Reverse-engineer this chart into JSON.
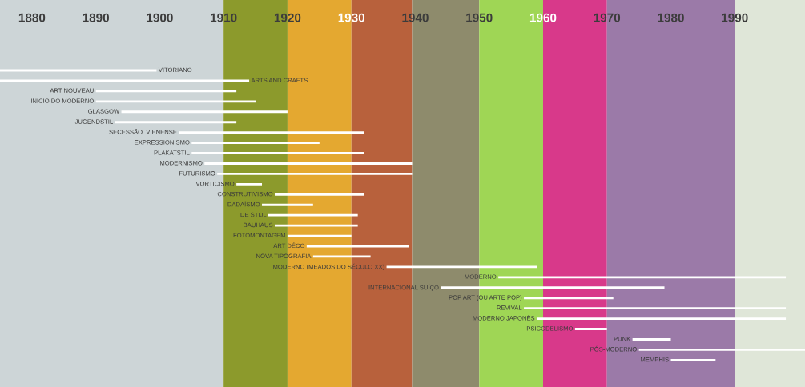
{
  "chart_data": {
    "type": "bar",
    "orientation": "horizontal",
    "categories": [
      "VITORIANO",
      "ARTS AND CRAFTS",
      "ART NOUVEAU",
      "INÍCIO DO MODERNO",
      "GLASGOW",
      "JUGENDSTIL",
      "SECESSÃO  VIENENSE",
      "EXPRESSIONISMO",
      "PLAKATSTIL",
      "MODERNISMO",
      "FUTURISMO",
      "VORTICISMO",
      "CONSTRUTIVISMO",
      "DADAÍSMO",
      "DE STIJL",
      "BAUHAUS",
      "FOTOMONTAGEM",
      "ART DÉCO",
      "NOVA TIPOGRAFIA",
      "MODERNO (MEADOS DO SÉCULO XX)",
      "MODERNO",
      "INTERNACIONAL SUÍÇO",
      "POP ART (OU ARTE POP)",
      "REVIVAL",
      "MODERNO JAPONÊS",
      "PSICODELISMO",
      "PUNK",
      "PÓS-MODERNO",
      "MEMPHIS"
    ],
    "base": [
      1875,
      1875,
      1890,
      1890,
      1894,
      1893,
      1903,
      1905,
      1905,
      1907,
      1909,
      1912,
      1918,
      1916,
      1917,
      1918,
      1920,
      1923,
      1924,
      1935.5,
      1953,
      1944,
      1957,
      1957,
      1959,
      1965,
      1974,
      1975,
      1980
    ],
    "values": [
      24.5,
      39,
      22,
      25,
      26,
      19,
      29,
      20,
      27,
      32.5,
      30.5,
      4,
      14,
      8,
      14,
      13,
      10,
      16,
      9,
      23.5,
      45,
      35,
      14,
      41,
      39,
      5,
      6,
      26,
      7
    ],
    "color": "#ffffff",
    "xlim": [
      1875,
      2001
    ],
    "xticks": [
      1880,
      1890,
      1900,
      1910,
      1920,
      1930,
      1940,
      1950,
      1960,
      1970,
      1980,
      1990
    ],
    "bands": [
      {
        "axis": "x",
        "from": 1875,
        "to": 1910,
        "color": "#cdd5d7"
      },
      {
        "axis": "x",
        "from": 1910,
        "to": 1920,
        "color": "#8c9a2c"
      },
      {
        "axis": "x",
        "from": 1920,
        "to": 1930,
        "color": "#e4a830"
      },
      {
        "axis": "x",
        "from": 1930,
        "to": 1939.5,
        "color": "#b8613c"
      },
      {
        "axis": "x",
        "from": 1939.5,
        "to": 1950,
        "color": "#8e8b6c"
      },
      {
        "axis": "x",
        "from": 1950,
        "to": 1960,
        "color": "#9fd655"
      },
      {
        "axis": "x",
        "from": 1960,
        "to": 1970,
        "color": "#d8398a"
      },
      {
        "axis": "x",
        "from": 1970,
        "to": 1990,
        "color": "#9b7aa8"
      },
      {
        "axis": "x",
        "from": 1990,
        "to": 2001,
        "color": "#dfe6d8"
      }
    ],
    "grid": false,
    "legend": false
  }
}
